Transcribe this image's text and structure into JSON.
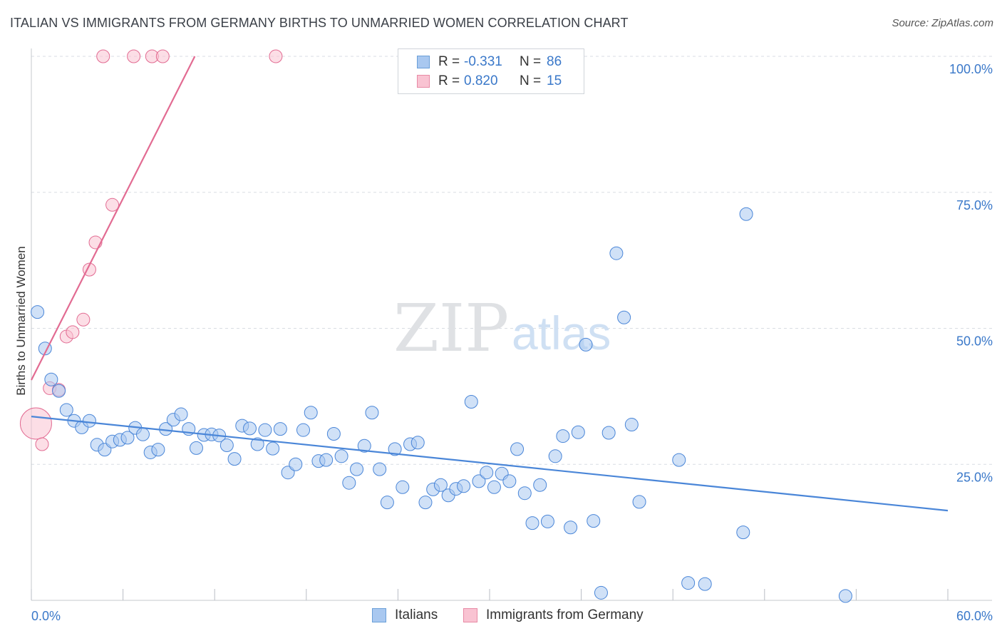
{
  "title": "ITALIAN VS IMMIGRANTS FROM GERMANY BIRTHS TO UNMARRIED WOMEN CORRELATION CHART",
  "source": "Source: ZipAtlas.com",
  "watermark": {
    "zip": "ZIP",
    "atlas": "atlas"
  },
  "legend_top": {
    "rows": [
      {
        "r_label": "R =",
        "r_value": "-0.331",
        "n_label": "N =",
        "n_value": "86",
        "color": "#a9c8f0",
        "border": "#6a9fd8"
      },
      {
        "r_label": "R =",
        "r_value": "0.820",
        "n_label": "N =",
        "n_value": "15",
        "color": "#f9c3d2",
        "border": "#e88aa5"
      }
    ]
  },
  "legend_bottom": {
    "items": [
      {
        "label": "Italians",
        "color": "#a9c8f0",
        "border": "#6a9fd8"
      },
      {
        "label": "Immigrants from Germany",
        "color": "#f9c3d2",
        "border": "#e88aa5"
      }
    ]
  },
  "chart_data": {
    "type": "scatter",
    "title": "ITALIAN VS IMMIGRANTS FROM GERMANY BIRTHS TO UNMARRIED WOMEN CORRELATION CHART",
    "xlabel": "",
    "ylabel": "Births to Unmarried Women",
    "xlim": [
      0,
      60
    ],
    "ylim": [
      0,
      100
    ],
    "x_tick_labels": [
      "0.0%",
      "60.0%"
    ],
    "y_tick_labels": [
      "100.0%",
      "75.0%",
      "50.0%",
      "25.0%"
    ],
    "y_ticks": [
      100,
      75,
      50,
      25
    ],
    "grid": true,
    "legend_placement": "bottom",
    "colors": {
      "italians": "#4a86d8",
      "italians_fill": "rgba(169,200,240,0.55)",
      "germany": "#e26b92",
      "germany_fill": "rgba(249,195,210,0.55)",
      "grid": "#d9dde3",
      "tick_label": "#3a78c9"
    },
    "series": [
      {
        "name": "Italians",
        "trend": {
          "x": [
            0,
            60
          ],
          "y": [
            33.8,
            16.5
          ]
        },
        "points": [
          [
            0.4,
            53.0,
            9
          ],
          [
            0.9,
            46.3,
            9
          ],
          [
            1.3,
            40.6,
            9
          ],
          [
            1.8,
            38.5,
            9
          ],
          [
            2.3,
            35.0,
            9
          ],
          [
            2.8,
            33.0,
            9
          ],
          [
            3.3,
            31.8,
            9
          ],
          [
            3.8,
            33.0,
            9
          ],
          [
            4.3,
            28.6,
            9
          ],
          [
            4.8,
            27.7,
            9
          ],
          [
            5.3,
            29.2,
            9
          ],
          [
            5.8,
            29.5,
            9
          ],
          [
            6.3,
            29.9,
            9
          ],
          [
            6.8,
            31.7,
            9
          ],
          [
            7.3,
            30.5,
            9
          ],
          [
            7.8,
            27.2,
            9
          ],
          [
            8.3,
            27.7,
            9
          ],
          [
            8.8,
            31.5,
            9
          ],
          [
            9.3,
            33.2,
            9
          ],
          [
            9.8,
            34.2,
            9
          ],
          [
            10.3,
            31.5,
            9
          ],
          [
            10.8,
            28.0,
            9
          ],
          [
            11.3,
            30.4,
            9
          ],
          [
            11.8,
            30.5,
            9
          ],
          [
            12.3,
            30.3,
            9
          ],
          [
            12.8,
            28.5,
            9
          ],
          [
            13.3,
            26.0,
            9
          ],
          [
            13.8,
            32.1,
            9
          ],
          [
            14.3,
            31.6,
            9
          ],
          [
            14.8,
            28.7,
            9
          ],
          [
            15.3,
            31.3,
            9
          ],
          [
            15.8,
            27.9,
            9
          ],
          [
            16.3,
            31.5,
            9
          ],
          [
            16.8,
            23.5,
            9
          ],
          [
            17.3,
            25.0,
            9
          ],
          [
            17.8,
            31.3,
            9
          ],
          [
            18.3,
            34.5,
            9
          ],
          [
            18.8,
            25.6,
            9
          ],
          [
            19.3,
            25.8,
            9
          ],
          [
            19.8,
            30.6,
            9
          ],
          [
            20.3,
            26.5,
            9
          ],
          [
            20.8,
            21.6,
            9
          ],
          [
            21.3,
            24.1,
            9
          ],
          [
            21.8,
            28.4,
            9
          ],
          [
            22.3,
            34.5,
            9
          ],
          [
            22.8,
            24.1,
            9
          ],
          [
            23.3,
            18.0,
            9
          ],
          [
            23.8,
            27.8,
            9
          ],
          [
            24.3,
            20.8,
            9
          ],
          [
            24.8,
            28.7,
            9
          ],
          [
            25.3,
            29.0,
            9
          ],
          [
            25.8,
            18.0,
            9
          ],
          [
            26.3,
            20.4,
            9
          ],
          [
            26.8,
            21.2,
            9
          ],
          [
            27.3,
            19.3,
            9
          ],
          [
            27.8,
            20.5,
            9
          ],
          [
            28.3,
            21.0,
            9
          ],
          [
            28.8,
            36.5,
            9
          ],
          [
            29.3,
            21.9,
            9
          ],
          [
            29.8,
            23.5,
            9
          ],
          [
            30.3,
            20.8,
            9
          ],
          [
            30.8,
            23.3,
            9
          ],
          [
            31.3,
            21.9,
            9
          ],
          [
            31.8,
            27.8,
            9
          ],
          [
            32.3,
            19.7,
            9
          ],
          [
            32.8,
            14.2,
            9
          ],
          [
            33.3,
            21.2,
            9
          ],
          [
            33.8,
            14.5,
            9
          ],
          [
            34.3,
            26.5,
            9
          ],
          [
            34.8,
            30.2,
            9
          ],
          [
            35.3,
            13.4,
            9
          ],
          [
            35.8,
            30.9,
            9
          ],
          [
            36.3,
            47.0,
            9
          ],
          [
            36.8,
            14.6,
            9
          ],
          [
            37.3,
            1.4,
            9
          ],
          [
            37.8,
            30.8,
            9
          ],
          [
            38.3,
            63.8,
            9
          ],
          [
            38.8,
            52.0,
            9
          ],
          [
            39.3,
            32.3,
            9
          ],
          [
            39.8,
            18.1,
            9
          ],
          [
            42.4,
            25.8,
            9
          ],
          [
            43.0,
            3.2,
            9
          ],
          [
            44.1,
            3.0,
            9
          ],
          [
            46.6,
            12.5,
            9
          ],
          [
            46.8,
            71.0,
            9
          ],
          [
            53.3,
            0.8,
            9
          ]
        ]
      },
      {
        "name": "Immigrants from Germany",
        "trend": {
          "x": [
            0,
            10.7
          ],
          "y": [
            40.5,
            100
          ]
        },
        "points": [
          [
            0.3,
            32.5,
            22
          ],
          [
            0.7,
            28.7,
            9
          ],
          [
            1.2,
            39.0,
            9
          ],
          [
            1.8,
            38.7,
            9
          ],
          [
            2.3,
            48.5,
            9
          ],
          [
            2.7,
            49.3,
            9
          ],
          [
            3.4,
            51.6,
            9
          ],
          [
            3.8,
            60.8,
            9
          ],
          [
            4.2,
            65.8,
            9
          ],
          [
            5.3,
            72.7,
            9
          ],
          [
            4.7,
            100,
            9
          ],
          [
            6.7,
            100,
            9
          ],
          [
            7.9,
            100,
            9
          ],
          [
            8.6,
            100,
            9
          ],
          [
            16.0,
            100,
            9
          ]
        ]
      }
    ]
  }
}
